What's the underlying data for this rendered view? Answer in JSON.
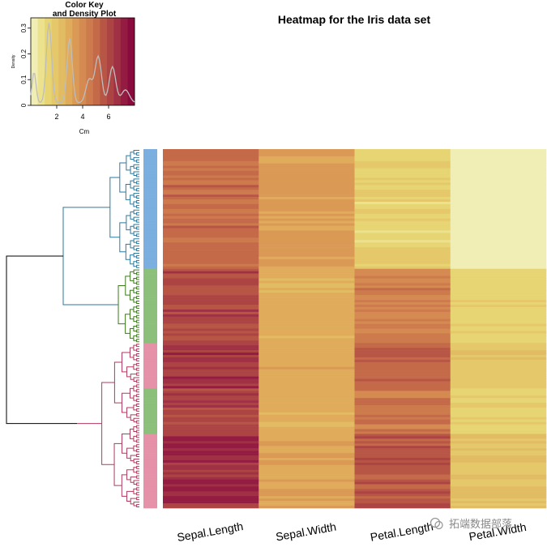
{
  "title": "Heatmap for the Iris data set",
  "color_key": {
    "title_line1": "Color Key",
    "title_line2": "and Density Plot",
    "xlabel": "Cm",
    "ylabel": "Density",
    "x_ticks": [
      "2",
      "4",
      "6"
    ],
    "y_ticks": [
      "0",
      "0.1",
      "0.2",
      "0.3"
    ],
    "range": [
      0,
      8
    ],
    "colors": [
      "#f0eeb4",
      "#ece28e",
      "#e7d574",
      "#e4c86a",
      "#e2bc63",
      "#e0ac5c",
      "#da9a55",
      "#d48a50",
      "#cd7a4d",
      "#c46a49",
      "#b85646",
      "#ac4444",
      "#a03044",
      "#941c42",
      "#8b0a3e"
    ]
  },
  "watermark": "拓端数据部落",
  "chart_data": {
    "type": "heatmap",
    "title": "Heatmap for the Iris data set",
    "columns": [
      "Sepal.Length",
      "Sepal.Width",
      "Petal.Length",
      "Petal.Width"
    ],
    "row_count": 150,
    "side_colors": {
      "blue": "#7aafe0",
      "green": "#8cc07a",
      "pink": "#e591a8"
    },
    "dendrogram_colors": [
      "#2a7a9e",
      "#3d7a1c",
      "#b03a5e",
      "#000000"
    ],
    "row_groups": [
      {
        "side": "blue",
        "n": 50,
        "values": [
          5.0,
          3.4,
          1.5,
          0.2
        ]
      },
      {
        "side": "green",
        "n": 31,
        "values": [
          5.9,
          2.8,
          4.4,
          1.4
        ]
      },
      {
        "side": "pink",
        "n": 19,
        "values": [
          6.6,
          3.0,
          5.3,
          1.9
        ]
      },
      {
        "side": "green",
        "n": 19,
        "values": [
          6.2,
          2.9,
          4.7,
          1.5
        ]
      },
      {
        "side": "pink",
        "n": 31,
        "values": [
          6.8,
          3.1,
          5.6,
          2.1
        ]
      }
    ]
  }
}
